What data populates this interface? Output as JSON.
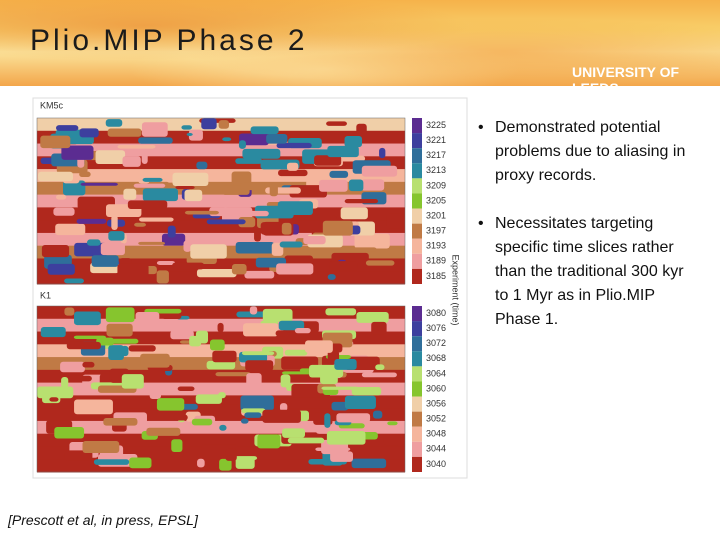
{
  "header": {
    "title": "Plio.MIP Phase 2",
    "logo": "UNIVERSITY OF LEEDS"
  },
  "figure": {
    "axis_label": "Experiment (time)",
    "panels": [
      {
        "label": "KM5c",
        "legend": [
          "3225",
          "3221",
          "3217",
          "3213",
          "3209",
          "3205",
          "3201",
          "3197",
          "3193",
          "3189",
          "3185"
        ]
      },
      {
        "label": "K1",
        "legend": [
          "3080",
          "3076",
          "3072",
          "3068",
          "3064",
          "3060",
          "3056",
          "3052",
          "3048",
          "3044",
          "3040"
        ]
      }
    ]
  },
  "bullets": [
    "Demonstrated potential problems due to aliasing in proxy records.",
    "Necessitates targeting specific time slices rather than the traditional 300 kyr to 1 Myr as in Plio.MIP Phase 1."
  ],
  "citation": "[Prescott et al, in press, EPSL]"
}
